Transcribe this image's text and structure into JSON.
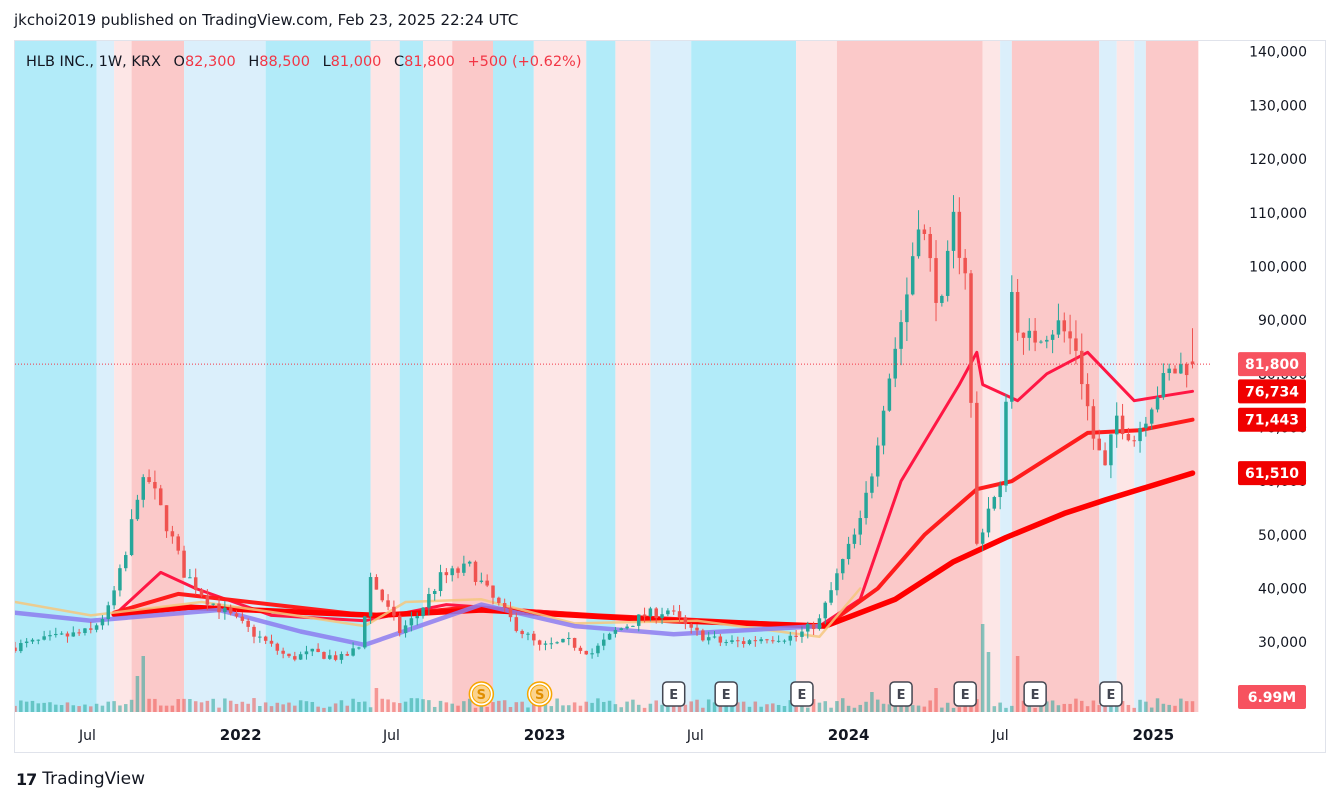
{
  "attribution": "jkchoi2019 published on TradingView.com, Feb 23, 2025 22:24 UTC",
  "legend": {
    "symbol": "HLB INC., 1W, KRX",
    "open_label": "O",
    "open": "82,300",
    "high_label": "H",
    "high": "88,500",
    "low_label": "L",
    "low": "81,000",
    "close_label": "C",
    "close": "81,800",
    "change": "+500 (+0.62%)"
  },
  "footer": {
    "logo_mark": "17",
    "logo_text": "TradingView"
  },
  "colors": {
    "up": "#26a69a",
    "down": "#ef5350",
    "price_label": "#f23645",
    "ma_fast": "#ff1744",
    "ma_mid": "#ff1c1c",
    "ma_slow": "#ff0000",
    "ma_yellow": "#f5c77e",
    "ma_purple": "#8c7cf0",
    "bg_cyan": "#b2ebf9",
    "bg_light_blue": "#dbeffb",
    "bg_red": "#fbc9c9",
    "bg_light_red": "#fde6e6"
  },
  "chart_data": {
    "type": "candlestick",
    "symbol": "HLB INC.",
    "interval": "1W",
    "exchange": "KRX",
    "y_axis": {
      "min": 17000,
      "max": 142000,
      "ticks": [
        30000,
        40000,
        50000,
        60000,
        70000,
        80000,
        90000,
        100000,
        110000,
        120000,
        130000,
        140000
      ],
      "tick_labels": [
        "30,000",
        "40,000",
        "50,000",
        "60,000",
        "70,000",
        "80,000",
        "90,000",
        "100,000",
        "110,000",
        "120,000",
        "130,000",
        "140,000"
      ]
    },
    "x_axis": {
      "start": "2021-04-05",
      "end": "2025-03-10",
      "ticks": [
        "2021-07-01",
        "2022-01-01",
        "2022-07-01",
        "2023-01-01",
        "2023-07-01",
        "2024-01-01",
        "2024-07-01",
        "2025-01-01"
      ],
      "tick_labels": [
        "Jul",
        "2022",
        "Jul",
        "2023",
        "Jul",
        "2024",
        "Jul",
        "2025"
      ]
    },
    "price_keypoints": [
      [
        "2021-04-05",
        29000
      ],
      [
        "2021-06-07",
        31000
      ],
      [
        "2021-07-12",
        32000
      ],
      [
        "2021-08-02",
        36000
      ],
      [
        "2021-08-23",
        46000
      ],
      [
        "2021-09-06",
        58000
      ],
      [
        "2021-09-20",
        60000
      ],
      [
        "2021-10-11",
        52000
      ],
      [
        "2021-11-01",
        43000
      ],
      [
        "2021-11-29",
        38000
      ],
      [
        "2022-01-03",
        34000
      ],
      [
        "2022-02-07",
        30000
      ],
      [
        "2022-03-07",
        27000
      ],
      [
        "2022-04-04",
        28000
      ],
      [
        "2022-05-09",
        27000
      ],
      [
        "2022-05-30",
        29000
      ],
      [
        "2022-06-13",
        42000
      ],
      [
        "2022-06-27",
        38000
      ],
      [
        "2022-07-18",
        32000
      ],
      [
        "2022-08-08",
        35000
      ],
      [
        "2022-09-05",
        42000
      ],
      [
        "2022-10-10",
        44000
      ],
      [
        "2022-11-07",
        38000
      ],
      [
        "2022-12-05",
        33000
      ],
      [
        "2023-01-02",
        29000
      ],
      [
        "2023-02-06",
        30000
      ],
      [
        "2023-03-06",
        28000
      ],
      [
        "2023-04-03",
        32000
      ],
      [
        "2023-05-08",
        35000
      ],
      [
        "2023-06-05",
        36000
      ],
      [
        "2023-07-03",
        32000
      ],
      [
        "2023-08-07",
        30000
      ],
      [
        "2023-09-04",
        30000
      ],
      [
        "2023-10-02",
        31000
      ],
      [
        "2023-11-06",
        31000
      ],
      [
        "2023-12-04",
        34000
      ],
      [
        "2024-01-01",
        45000
      ],
      [
        "2024-01-22",
        52000
      ],
      [
        "2024-02-05",
        62000
      ],
      [
        "2024-02-19",
        75000
      ],
      [
        "2024-03-04",
        85000
      ],
      [
        "2024-03-18",
        95000
      ],
      [
        "2024-04-01",
        110000
      ],
      [
        "2024-04-15",
        100000
      ],
      [
        "2024-04-29",
        92000
      ],
      [
        "2024-05-13",
        108000
      ],
      [
        "2024-05-27",
        100000
      ],
      [
        "2024-06-10",
        48000
      ],
      [
        "2024-06-24",
        55000
      ],
      [
        "2024-07-08",
        58000
      ],
      [
        "2024-07-22",
        95000
      ],
      [
        "2024-08-05",
        85000
      ],
      [
        "2024-08-26",
        88000
      ],
      [
        "2024-09-16",
        89000
      ],
      [
        "2024-10-07",
        85000
      ],
      [
        "2024-10-28",
        68000
      ],
      [
        "2024-11-11",
        62000
      ],
      [
        "2024-11-25",
        72000
      ],
      [
        "2024-12-16",
        68000
      ],
      [
        "2025-01-06",
        75000
      ],
      [
        "2025-01-27",
        80000
      ],
      [
        "2025-02-17",
        81800
      ]
    ],
    "last_candle": {
      "date": "2025-02-17",
      "open": 82300,
      "high": 88500,
      "low": 81000,
      "close": 81800
    },
    "moving_averages": [
      {
        "color": "#ff1744",
        "last": 76734,
        "points": [
          [
            "2021-08-02",
            35000
          ],
          [
            "2021-09-27",
            43000
          ],
          [
            "2021-11-08",
            40000
          ],
          [
            "2022-02-07",
            35000
          ],
          [
            "2022-05-30",
            34000
          ],
          [
            "2022-09-05",
            37000
          ],
          [
            "2022-12-05",
            36000
          ],
          [
            "2023-06-05",
            34000
          ],
          [
            "2023-11-27",
            33000
          ],
          [
            "2024-01-15",
            38000
          ],
          [
            "2024-03-04",
            60000
          ],
          [
            "2024-05-13",
            78000
          ],
          [
            "2024-06-03",
            84000
          ],
          [
            "2024-06-10",
            78000
          ],
          [
            "2024-07-22",
            75000
          ],
          [
            "2024-08-26",
            80000
          ],
          [
            "2024-10-14",
            84000
          ],
          [
            "2024-12-09",
            75000
          ],
          [
            "2025-02-17",
            76734
          ]
        ]
      },
      {
        "color": "#ff1c1c",
        "last": 71443,
        "points": [
          [
            "2021-08-02",
            35500
          ],
          [
            "2021-10-18",
            39000
          ],
          [
            "2022-06-13",
            34800
          ],
          [
            "2022-10-03",
            36500
          ],
          [
            "2023-03-06",
            35000
          ],
          [
            "2023-12-04",
            33000
          ],
          [
            "2024-02-05",
            40000
          ],
          [
            "2024-04-01",
            50000
          ],
          [
            "2024-06-03",
            58500
          ],
          [
            "2024-07-15",
            60000
          ],
          [
            "2024-10-14",
            69000
          ],
          [
            "2024-12-16",
            69500
          ],
          [
            "2025-02-17",
            71443
          ]
        ]
      },
      {
        "color": "#ff0000",
        "last": 61510,
        "points": [
          [
            "2021-08-02",
            35200
          ],
          [
            "2021-11-01",
            36500
          ],
          [
            "2022-06-13",
            35000
          ],
          [
            "2022-10-17",
            36000
          ],
          [
            "2023-06-05",
            34000
          ],
          [
            "2023-12-04",
            33000
          ],
          [
            "2024-02-26",
            38000
          ],
          [
            "2024-05-06",
            45000
          ],
          [
            "2024-07-08",
            49500
          ],
          [
            "2024-09-16",
            54000
          ],
          [
            "2024-11-04",
            56500
          ],
          [
            "2025-02-17",
            61510
          ]
        ]
      },
      {
        "color": "#f5c77e",
        "last": null,
        "points": [
          [
            "2021-04-05",
            37500
          ],
          [
            "2021-07-05",
            35000
          ],
          [
            "2021-11-15",
            37500
          ],
          [
            "2022-03-07",
            35000
          ],
          [
            "2022-05-30",
            33000
          ],
          [
            "2022-07-18",
            37500
          ],
          [
            "2022-10-17",
            38000
          ],
          [
            "2023-02-06",
            33500
          ],
          [
            "2023-07-03",
            34000
          ],
          [
            "2023-11-27",
            31000
          ],
          [
            "2024-01-15",
            40000
          ]
        ]
      },
      {
        "color": "#8c7cf0",
        "last": null,
        "points": [
          [
            "2021-04-05",
            35500
          ],
          [
            "2021-07-05",
            34000
          ],
          [
            "2021-12-06",
            36000
          ],
          [
            "2022-03-14",
            32000
          ],
          [
            "2022-05-30",
            29500
          ],
          [
            "2022-10-17",
            37000
          ],
          [
            "2023-02-06",
            33000
          ],
          [
            "2023-06-05",
            31500
          ],
          [
            "2023-11-27",
            33000
          ]
        ]
      }
    ],
    "price_labels": [
      {
        "text": "81,800",
        "value": 81800
      },
      {
        "text": "76,734",
        "value": 76734
      },
      {
        "text": "71,443",
        "value": 71443
      },
      {
        "text": "61,510",
        "value": 61510
      }
    ],
    "volume": {
      "last_label": "6.99M",
      "spikes": [
        [
          "2021-08-30",
          9
        ],
        [
          "2021-09-06",
          14
        ],
        [
          "2022-06-13",
          6
        ],
        [
          "2024-01-29",
          5
        ],
        [
          "2024-04-15",
          6
        ],
        [
          "2024-06-10",
          22
        ],
        [
          "2024-06-17",
          15
        ],
        [
          "2024-07-22",
          14
        ]
      ]
    },
    "event_markers": [
      {
        "label": "S",
        "date": "2022-10-17",
        "kind": "split"
      },
      {
        "label": "S",
        "date": "2022-12-26",
        "kind": "split"
      },
      {
        "label": "E",
        "date": "2023-06-05",
        "kind": "earnings"
      },
      {
        "label": "E",
        "date": "2023-08-07",
        "kind": "earnings"
      },
      {
        "label": "E",
        "date": "2023-11-06",
        "kind": "earnings"
      },
      {
        "label": "E",
        "date": "2024-03-04",
        "kind": "earnings"
      },
      {
        "label": "E",
        "date": "2024-05-20",
        "kind": "earnings"
      },
      {
        "label": "E",
        "date": "2024-08-12",
        "kind": "earnings"
      },
      {
        "label": "E",
        "date": "2024-11-11",
        "kind": "earnings"
      }
    ],
    "background_regions": [
      [
        "2021-04-05",
        "2021-07-12",
        "cyan"
      ],
      [
        "2021-07-12",
        "2021-08-02",
        "light_blue"
      ],
      [
        "2021-08-02",
        "2021-08-23",
        "light_red"
      ],
      [
        "2021-08-23",
        "2021-10-25",
        "red"
      ],
      [
        "2021-10-25",
        "2022-01-31",
        "light_blue"
      ],
      [
        "2022-01-31",
        "2022-06-06",
        "cyan"
      ],
      [
        "2022-06-06",
        "2022-07-11",
        "light_red"
      ],
      [
        "2022-07-11",
        "2022-08-08",
        "cyan"
      ],
      [
        "2022-08-08",
        "2022-09-12",
        "light_red"
      ],
      [
        "2022-09-12",
        "2022-10-31",
        "red"
      ],
      [
        "2022-10-31",
        "2022-12-19",
        "cyan"
      ],
      [
        "2022-12-19",
        "2023-02-20",
        "light_red"
      ],
      [
        "2023-02-20",
        "2023-03-27",
        "cyan"
      ],
      [
        "2023-03-27",
        "2023-05-08",
        "light_red"
      ],
      [
        "2023-05-08",
        "2023-06-26",
        "light_blue"
      ],
      [
        "2023-06-26",
        "2023-10-30",
        "cyan"
      ],
      [
        "2023-10-30",
        "2023-12-18",
        "light_red"
      ],
      [
        "2023-12-18",
        "2024-06-10",
        "red"
      ],
      [
        "2024-06-10",
        "2024-07-01",
        "light_red"
      ],
      [
        "2024-07-01",
        "2024-07-15",
        "light_blue"
      ],
      [
        "2024-07-15",
        "2024-10-28",
        "red"
      ],
      [
        "2024-10-28",
        "2024-11-18",
        "light_blue"
      ],
      [
        "2024-11-18",
        "2024-12-09",
        "light_red"
      ],
      [
        "2024-12-09",
        "2024-12-23",
        "light_blue"
      ],
      [
        "2024-12-23",
        "2025-02-24",
        "red"
      ]
    ],
    "grid": false,
    "title": "",
    "xlabel": "",
    "ylabel": ""
  }
}
